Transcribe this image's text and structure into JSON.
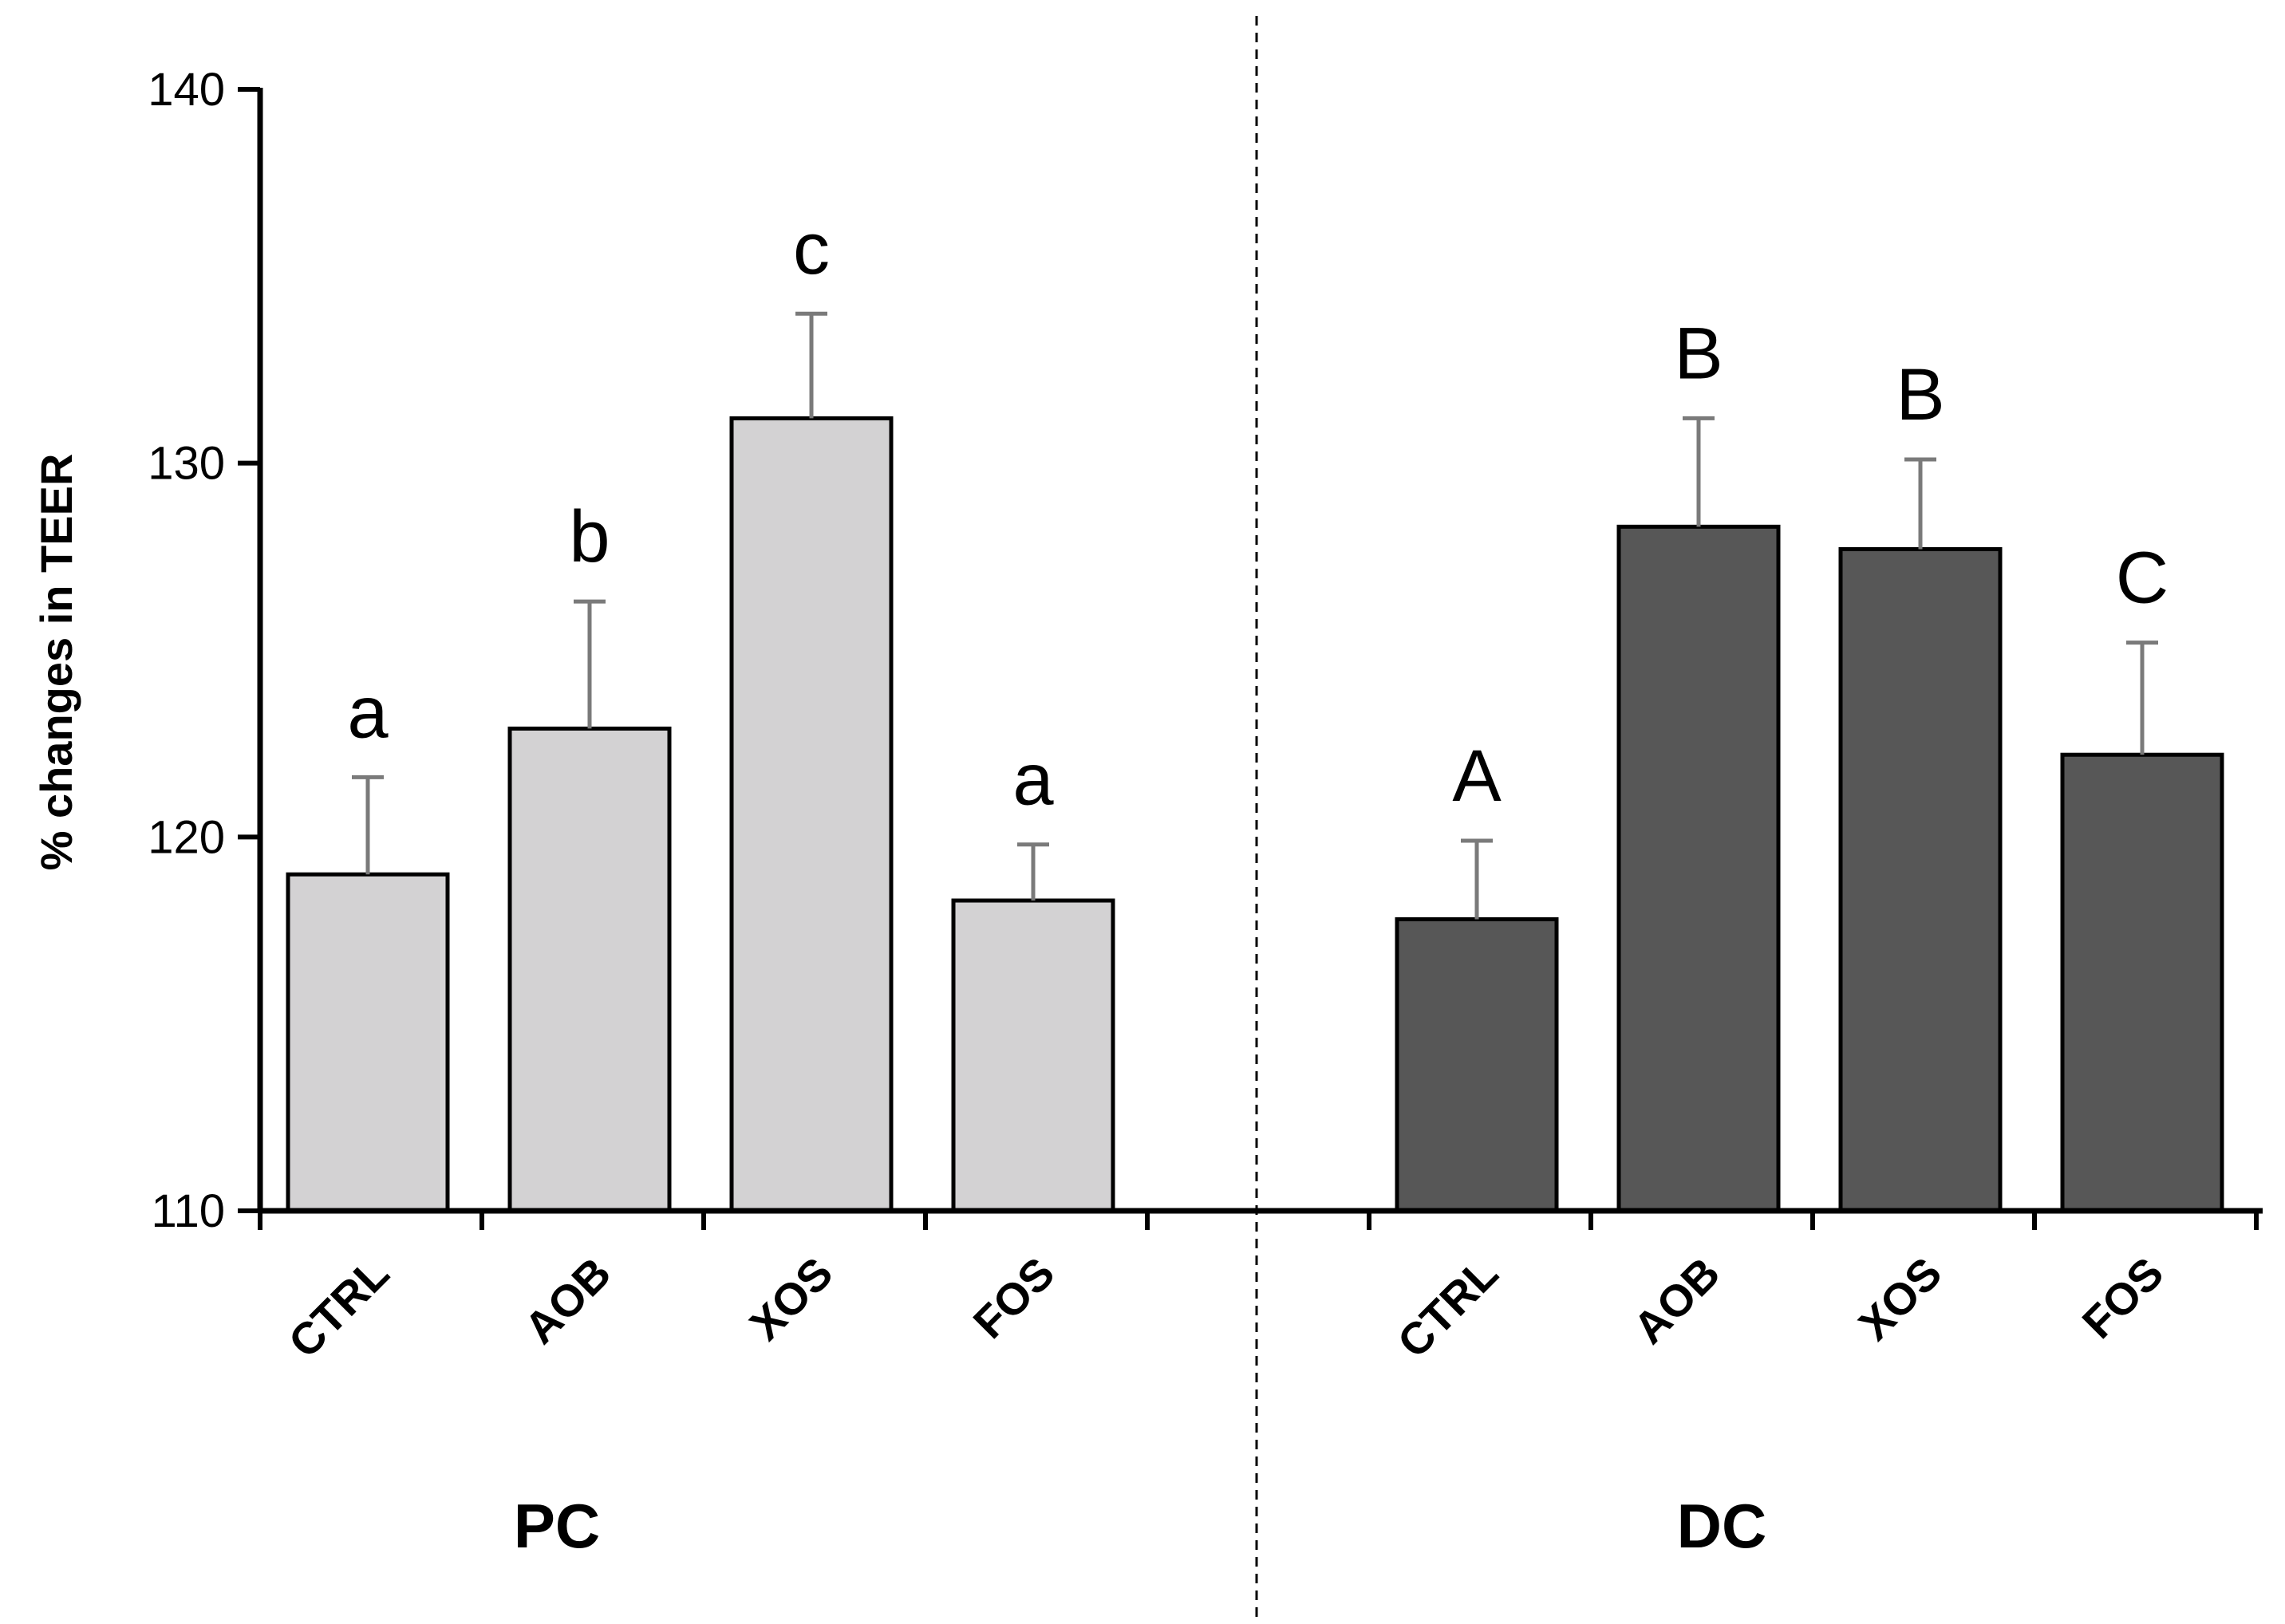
{
  "chart_data": {
    "type": "bar",
    "title": "",
    "xlabel": "",
    "ylabel": "% changes in TEER",
    "ylim": [
      110,
      140
    ],
    "yticks": [
      110,
      120,
      130,
      140
    ],
    "grid": false,
    "colors": {
      "PC": "#d3d2d3",
      "DC": "#575757",
      "error": "#7a7a7a",
      "axis": "#000000"
    },
    "groups": [
      {
        "name": "PC",
        "bars": [
          {
            "category": "CTRL",
            "value": 119.0,
            "error": 2.6,
            "sig": "a"
          },
          {
            "category": "AOB",
            "value": 122.9,
            "error": 3.4,
            "sig": "b"
          },
          {
            "category": "XOS",
            "value": 131.2,
            "error": 2.8,
            "sig": "c"
          },
          {
            "category": "FOS",
            "value": 118.3,
            "error": 1.5,
            "sig": "a"
          }
        ]
      },
      {
        "name": "DC",
        "bars": [
          {
            "category": "CTRL",
            "value": 117.8,
            "error": 2.1,
            "sig": "A"
          },
          {
            "category": "AOB",
            "value": 128.3,
            "error": 2.9,
            "sig": "B"
          },
          {
            "category": "XOS",
            "value": 127.7,
            "error": 2.4,
            "sig": "B"
          },
          {
            "category": "FOS",
            "value": 122.2,
            "error": 3.0,
            "sig": "C"
          }
        ]
      }
    ]
  }
}
